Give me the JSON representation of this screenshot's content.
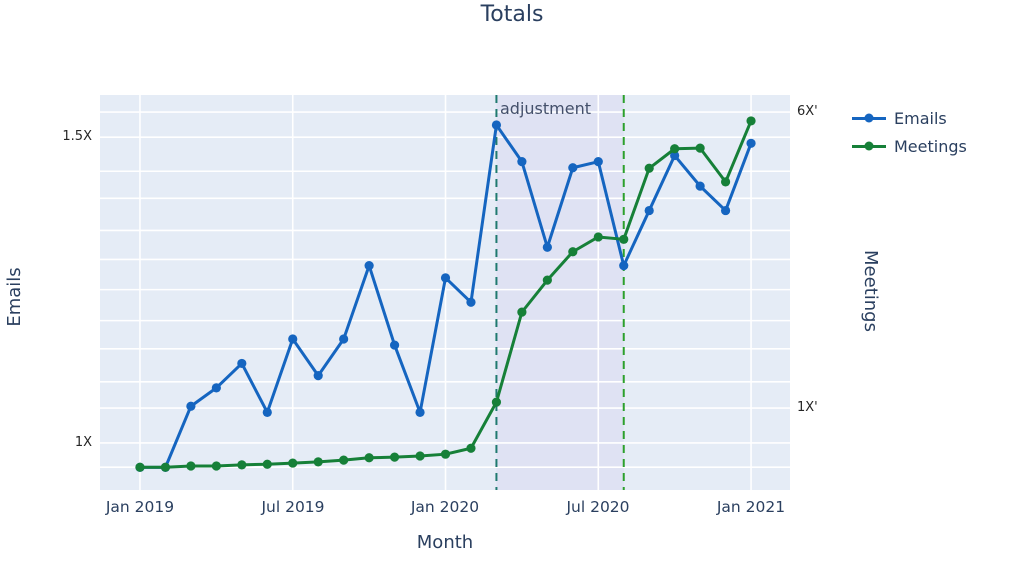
{
  "title": "Totals",
  "annotation": {
    "label": "adjustment"
  },
  "legend": {
    "items": [
      {
        "label": "Emails",
        "color": "#1565c0"
      },
      {
        "label": "Meetings",
        "color": "#168038"
      }
    ]
  },
  "chart_data": {
    "type": "line",
    "title": "Totals",
    "xlabel": "Month",
    "x": [
      "Jan 2019",
      "Feb 2019",
      "Mar 2019",
      "Apr 2019",
      "May 2019",
      "Jun 2019",
      "Jul 2019",
      "Aug 2019",
      "Sep 2019",
      "Oct 2019",
      "Nov 2019",
      "Dec 2019",
      "Jan 2020",
      "Feb 2020",
      "Mar 2020",
      "Apr 2020",
      "May 2020",
      "Jun 2020",
      "Jul 2020",
      "Aug 2020",
      "Sep 2020",
      "Oct 2020",
      "Nov 2020",
      "Dec 2020",
      "Jan 2021"
    ],
    "series": [
      {
        "name": "Emails",
        "axis": "left",
        "color": "#1565c0",
        "values": [
          0.96,
          0.96,
          1.06,
          1.09,
          1.13,
          1.05,
          1.17,
          1.11,
          1.17,
          1.29,
          1.16,
          1.05,
          1.27,
          1.23,
          1.52,
          1.46,
          1.32,
          1.45,
          1.46,
          1.29,
          1.38,
          1.47,
          1.42,
          1.38,
          1.49
        ]
      },
      {
        "name": "Meetings",
        "axis": "right",
        "color": "#168038",
        "values": [
          0.0,
          0.0,
          0.02,
          0.02,
          0.04,
          0.05,
          0.07,
          0.09,
          0.12,
          0.16,
          0.17,
          0.19,
          0.22,
          0.32,
          1.1,
          2.62,
          3.16,
          3.64,
          3.89,
          3.85,
          5.05,
          5.38,
          5.39,
          4.82,
          5.85
        ]
      }
    ],
    "y_left": {
      "title": "Emails",
      "range": [
        0.923,
        1.569
      ],
      "ticks": [
        {
          "value": 1.0,
          "label": "1X"
        },
        {
          "value": 1.5,
          "label": "1.5X"
        }
      ],
      "grid_values": [
        1.0,
        1.1,
        1.2,
        1.3,
        1.4,
        1.5
      ]
    },
    "y_right": {
      "title": "Meetings",
      "range": [
        -0.385,
        6.288
      ],
      "ticks": [
        {
          "value": 1,
          "label": "1X'"
        },
        {
          "value": 6,
          "label": "6X'"
        }
      ],
      "grid_values": [
        0,
        1,
        2,
        3,
        4,
        5,
        6
      ]
    },
    "x_range": [
      -1.57,
      25.53
    ],
    "x_ticks": [
      {
        "index": 0,
        "label": "Jan 2019"
      },
      {
        "index": 6,
        "label": "Jul 2019"
      },
      {
        "index": 12,
        "label": "Jan 2020"
      },
      {
        "index": 18,
        "label": "Jul 2020"
      },
      {
        "index": 24,
        "label": "Jan 2021"
      }
    ],
    "shaded_region": {
      "from_index": 14,
      "to_index": 19,
      "label": "adjustment",
      "fill": "#dfe2f3"
    },
    "vlines": [
      {
        "index": 14,
        "color": "#1f7a6f",
        "dash": "dash"
      },
      {
        "index": 19,
        "color": "#2ca02c",
        "dash": "dash"
      }
    ],
    "legend_position": "right",
    "grid": true,
    "plot_bgcolor": "#e5ecf6",
    "grid_color": "#ffffff"
  }
}
